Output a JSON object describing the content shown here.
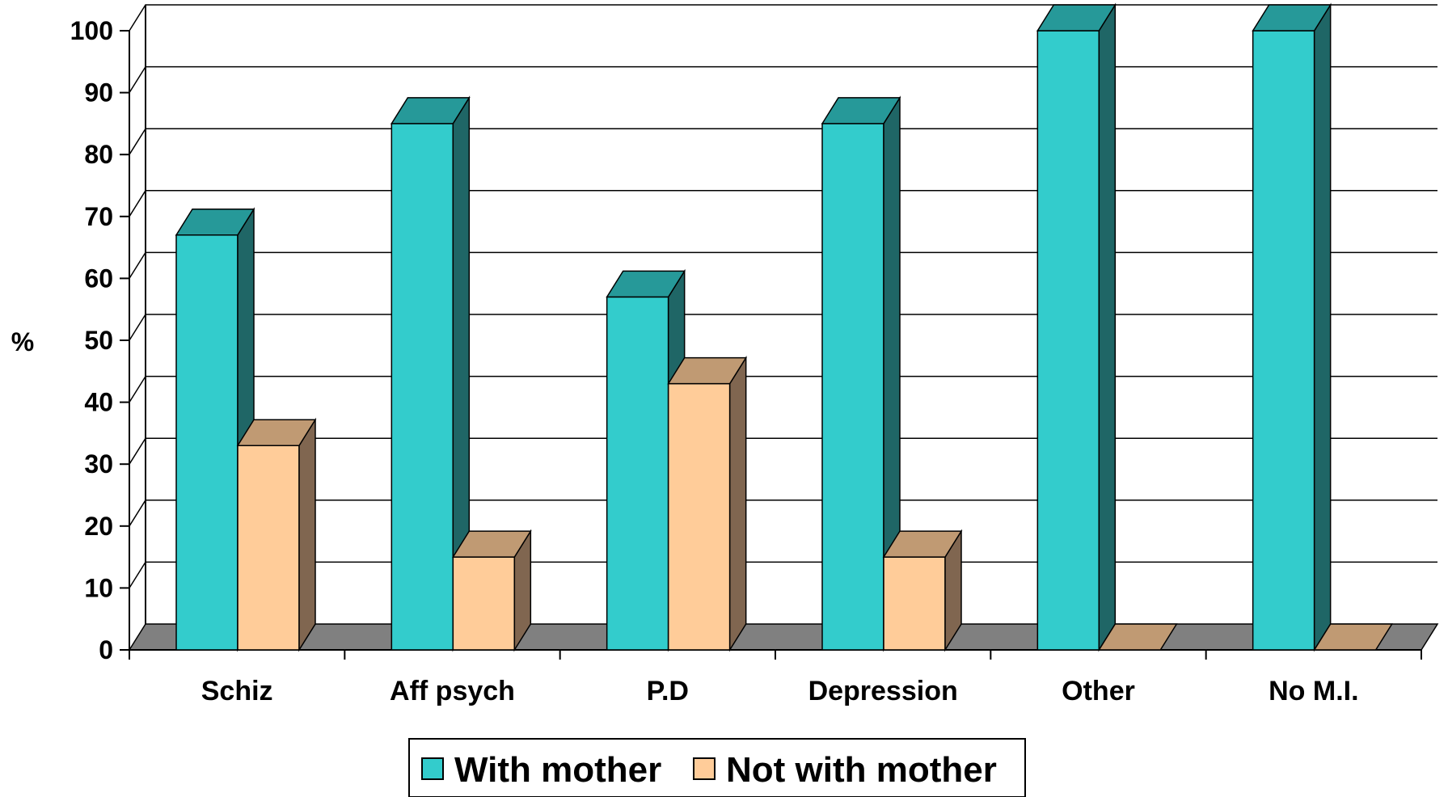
{
  "chart_data": {
    "type": "bar",
    "ylabel": "%",
    "ylim": [
      0,
      100
    ],
    "ytick_step": 10,
    "categories": [
      "Schiz",
      "Aff psych",
      "P.D",
      "Depression",
      "Other",
      "No M.I."
    ],
    "series": [
      {
        "name": "With mother",
        "values": [
          67,
          85,
          57,
          85,
          100,
          100
        ],
        "color": "#33CCCC",
        "top_color": "#269999",
        "side_color": "#1F6666"
      },
      {
        "name": "Not with mother",
        "values": [
          33,
          15,
          43,
          15,
          0,
          0
        ],
        "color": "#FFCC99",
        "top_color": "#C09A73",
        "side_color": "#806650"
      }
    ],
    "legend": "bottom",
    "grid": true
  }
}
